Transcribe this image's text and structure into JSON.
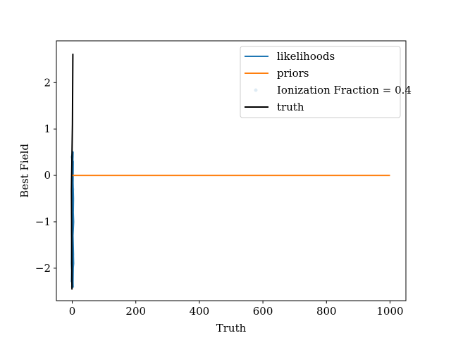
{
  "chart_data": {
    "type": "line",
    "title": "",
    "xlabel": "Truth",
    "ylabel": "Best Field",
    "xlim": [
      -50,
      1050
    ],
    "ylim": [
      -2.7,
      2.9
    ],
    "xticks": [
      0,
      200,
      400,
      600,
      800,
      1000
    ],
    "yticks": [
      -2,
      -1,
      0,
      1,
      2
    ],
    "legend_position": "upper-right",
    "series": [
      {
        "name": "likelihoods",
        "type": "line",
        "color": "#1f77b4",
        "x": [
          -1.5,
          0.5,
          2.5,
          -0.5,
          1.5,
          -1,
          3,
          0,
          2,
          -1.5,
          1,
          2.5,
          -0.5,
          3,
          0.5,
          1.5,
          -1,
          2,
          0.5
        ],
        "y": [
          -2.3,
          -1.6,
          -0.5,
          0.4,
          0.5,
          -0.2,
          -1.0,
          -1.5,
          0.3,
          -1.9,
          -2.4,
          -1.7,
          -0.8,
          -1.9,
          -2.1,
          -2.4,
          -1.2,
          -0.6,
          0.3
        ]
      },
      {
        "name": "priors",
        "type": "line",
        "color": "#ff7f0e",
        "x": [
          0,
          1000
        ],
        "y": [
          0,
          0
        ]
      },
      {
        "name": "Ionization Fraction = 0.4",
        "type": "scatter",
        "color": "#1f77b4",
        "alpha": 0.15,
        "x": [
          0.5,
          1.5,
          -0.5,
          1
        ],
        "y": [
          -2.4,
          -0.3,
          0.4,
          -1.9
        ]
      },
      {
        "name": "truth",
        "type": "line",
        "color": "#000000",
        "x": [
          -2.5,
          -1,
          -2.5,
          0.5,
          2
        ],
        "y": [
          -2.45,
          -2.45,
          -0.3,
          1.1,
          2.62
        ]
      }
    ]
  }
}
